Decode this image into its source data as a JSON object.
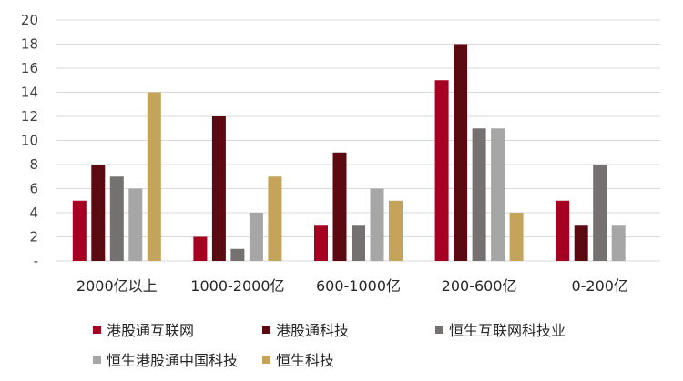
{
  "chart_data": {
    "type": "bar",
    "categories": [
      "2000亿以上",
      "1000-2000亿",
      "600-1000亿",
      "200-600亿",
      "0-200亿"
    ],
    "series": [
      {
        "name": "港股通互联网",
        "color": "#A50021",
        "values": [
          5,
          2,
          3,
          15,
          5
        ]
      },
      {
        "name": "港股通科技",
        "color": "#5C0A12",
        "values": [
          8,
          12,
          9,
          18,
          3
        ]
      },
      {
        "name": "恒生互联网科技业",
        "color": "#767171",
        "values": [
          7,
          1,
          3,
          11,
          8
        ]
      },
      {
        "name": "恒生港股通中国科技",
        "color": "#A6A6A6",
        "values": [
          6,
          4,
          6,
          11,
          3
        ]
      },
      {
        "name": "恒生科技",
        "color": "#C4A35A",
        "values": [
          14,
          7,
          5,
          4,
          0
        ]
      }
    ],
    "ylim": [
      0,
      20
    ],
    "yticks": [
      "-",
      "2",
      "4",
      "6",
      "8",
      "10",
      "12",
      "14",
      "16",
      "18",
      "20"
    ],
    "grid": true,
    "legend_position": "bottom"
  }
}
